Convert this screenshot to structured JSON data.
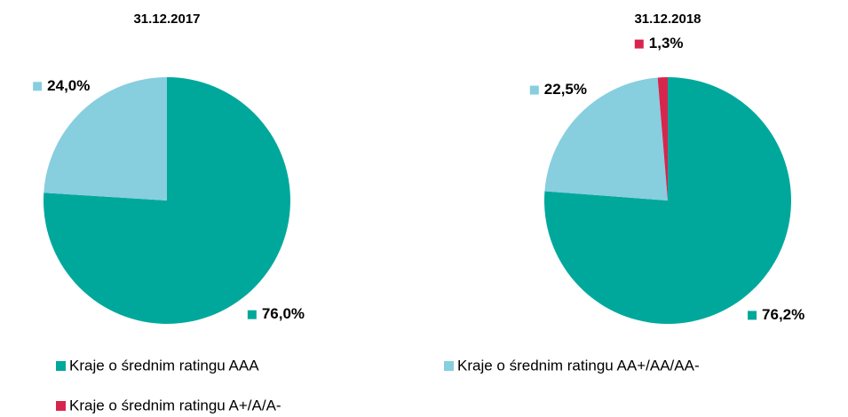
{
  "legend": [
    {
      "name": "Kraje o średnim ratingu AAA",
      "color": "#00a89c"
    },
    {
      "name": "Kraje o średnim ratingu AA+/AA/AA-",
      "color": "#87cedf"
    },
    {
      "name": "Kraje o średnim ratingu A+/A/A-",
      "color": "#d7264e"
    }
  ],
  "chart_data": [
    {
      "type": "pie",
      "title": "31.12.2017",
      "values": [
        76.0,
        24.0
      ],
      "value_labels": [
        "76,0%",
        "24,0%"
      ]
    },
    {
      "type": "pie",
      "title": "31.12.2018",
      "values": [
        76.2,
        22.5,
        1.3
      ],
      "value_labels": [
        "76,2%",
        "22,5%",
        "1,3%"
      ]
    }
  ]
}
